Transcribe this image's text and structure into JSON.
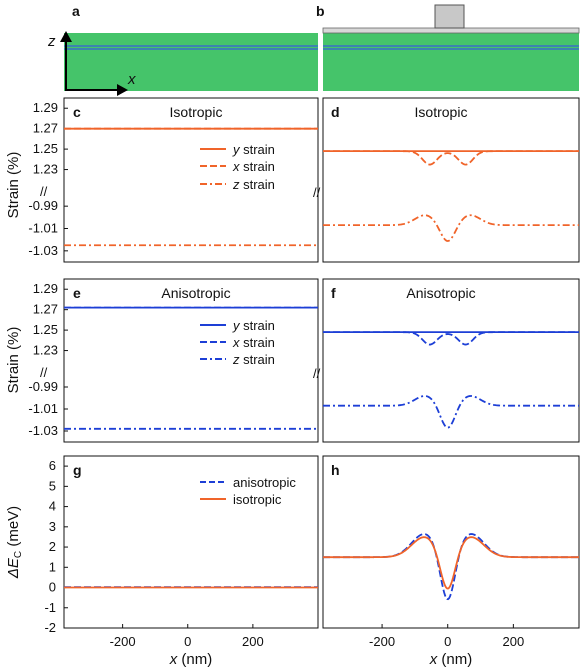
{
  "colors": {
    "orange": "#f0642a",
    "blue": "#1d3fd6",
    "green": "#45c46a",
    "layer_blue": "#3a6ec8",
    "gate_gray": "#c8c8c8"
  },
  "labels": {
    "a": "a",
    "b": "b",
    "c": "c",
    "d": "d",
    "e": "e",
    "f": "f",
    "g": "g",
    "h": "h"
  },
  "schematic": {
    "axis_z": "z",
    "axis_x": "x"
  },
  "titles": {
    "c": "Isotropic",
    "d": "Isotropic",
    "e": "Anisotropic",
    "f": "Anisotropic"
  },
  "axes": {
    "strain_ylabel": "Strain (%)",
    "energy_ylabel_prefix": "ΔE",
    "energy_ylabel_sub": "C",
    "energy_ylabel_unit": " (meV)",
    "x_var": "x",
    "x_unit": " (nm)",
    "break_mark": "//"
  },
  "legend_strain": {
    "y": "y",
    "x": "x",
    "z": "z",
    "suffix": " strain"
  },
  "legend_energy": {
    "aniso": "anisotropic",
    "iso": "isotropic"
  },
  "chart_data": [
    {
      "panel": "c",
      "type": "line",
      "title": "Isotropic",
      "xlim": [
        -380,
        400
      ],
      "upper_ylim": [
        1.21,
        1.3
      ],
      "lower_ylim": [
        -1.04,
        -0.98
      ],
      "upper_ticks": [
        "1.29",
        "1.27",
        "1.25",
        "1.23"
      ],
      "lower_ticks": [
        "-0.99",
        "-1.01",
        "-1.03"
      ],
      "series": [
        {
          "name": "y strain",
          "kind": "flat",
          "value": 1.27,
          "style": "solid"
        },
        {
          "name": "x strain",
          "kind": "flat",
          "value": 1.27,
          "style": "dash"
        },
        {
          "name": "z strain",
          "kind": "flat",
          "value": -1.025,
          "style": "dashdot"
        }
      ]
    },
    {
      "panel": "d",
      "type": "line",
      "title": "Isotropic",
      "xlim": [
        -380,
        400
      ],
      "upper_ylim": [
        1.21,
        1.3
      ],
      "lower_ylim": [
        -1.04,
        -0.98
      ],
      "series": [
        {
          "name": "y strain",
          "kind": "flat",
          "value": 1.248,
          "style": "solid"
        },
        {
          "name": "x strain",
          "kind": "twodip",
          "base": 1.248,
          "dip_left": 1.235,
          "dip_right": 1.235,
          "mid": 1.244,
          "style": "dash"
        },
        {
          "name": "z strain",
          "kind": "zshape",
          "base": -1.007,
          "bump": -0.998,
          "min": -1.021,
          "style": "dashdot"
        }
      ]
    },
    {
      "panel": "e",
      "type": "line",
      "title": "Anisotropic",
      "xlim": [
        -380,
        400
      ],
      "upper_ylim": [
        1.21,
        1.3
      ],
      "lower_ylim": [
        -1.04,
        -0.98
      ],
      "upper_ticks": [
        "1.29",
        "1.27",
        "1.25",
        "1.23"
      ],
      "lower_ticks": [
        "-0.99",
        "-1.01",
        "-1.03"
      ],
      "series": [
        {
          "name": "y strain",
          "kind": "flat",
          "value": 1.272,
          "style": "solid"
        },
        {
          "name": "x strain",
          "kind": "flat",
          "value": 1.272,
          "style": "dash"
        },
        {
          "name": "z strain",
          "kind": "flat",
          "value": -1.028,
          "style": "dashdot"
        }
      ]
    },
    {
      "panel": "f",
      "type": "line",
      "title": "Anisotropic",
      "xlim": [
        -380,
        400
      ],
      "upper_ylim": [
        1.21,
        1.3
      ],
      "lower_ylim": [
        -1.04,
        -0.98
      ],
      "series": [
        {
          "name": "y strain",
          "kind": "flat",
          "value": 1.248,
          "style": "solid"
        },
        {
          "name": "x strain",
          "kind": "twodip",
          "base": 1.248,
          "dip_left": 1.236,
          "dip_right": 1.236,
          "mid": 1.244,
          "style": "dash"
        },
        {
          "name": "z strain",
          "kind": "zshape",
          "base": -1.007,
          "bump": -0.998,
          "min": -1.026,
          "style": "dashdot"
        }
      ]
    },
    {
      "panel": "g",
      "type": "line",
      "xlim": [
        -380,
        400
      ],
      "ylim": [
        -2,
        6.5
      ],
      "yticks": [
        -2,
        -1,
        0,
        1,
        2,
        3,
        4,
        5,
        6
      ],
      "xticks": [
        -200,
        0,
        200
      ],
      "series": [
        {
          "name": "anisotropic",
          "kind": "flat",
          "value": 0.02,
          "style": "dash",
          "color": "blue"
        },
        {
          "name": "isotropic",
          "kind": "flat",
          "value": 0.0,
          "style": "solid",
          "color": "orange"
        }
      ]
    },
    {
      "panel": "h",
      "type": "line",
      "xlim": [
        -380,
        400
      ],
      "ylim": [
        -2,
        6.5
      ],
      "xticks": [
        -200,
        0,
        200
      ],
      "series": [
        {
          "name": "anisotropic",
          "kind": "dip",
          "base": 1.5,
          "peak": 2.6,
          "min": -0.75,
          "style": "dash",
          "color": "blue"
        },
        {
          "name": "isotropic",
          "kind": "dip",
          "base": 1.5,
          "peak": 2.45,
          "min": -0.2,
          "style": "solid",
          "color": "orange"
        }
      ]
    }
  ]
}
